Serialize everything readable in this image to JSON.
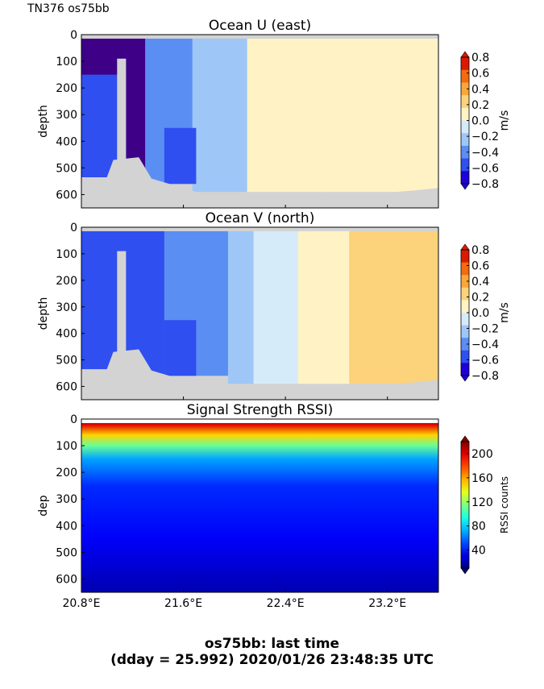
{
  "figure": {
    "corner_label": "TN376 os75bb",
    "footer_line1": "os75bb: last time",
    "footer_line2": "(dday = 25.992) 2020/01/26 23:48:35 UTC"
  },
  "colors": {
    "no_data": "#d3d3d3",
    "contour_levels": [
      "#1f00d6",
      "#2f4ff0",
      "#5b8ef2",
      "#9ec7f7",
      "#d6ebfa",
      "#fff3c6",
      "#fcd27a",
      "#f9a63b",
      "#f26b10",
      "#d91a00"
    ],
    "deep_blue": "#3e0086"
  },
  "chart_data": [
    {
      "type": "heatmap",
      "title": "Ocean U (east)",
      "xlabel": "",
      "ylabel": "depth",
      "xlim": [
        20.8,
        23.6
      ],
      "ylim": [
        650,
        0
      ],
      "yticks": [
        0,
        100,
        200,
        300,
        400,
        500,
        600
      ],
      "yticklabels": [
        "0",
        "100",
        "200",
        "300",
        "400",
        "500",
        "600"
      ],
      "xticks": [
        20.8,
        21.6,
        22.4,
        23.2
      ],
      "xticklabels": [],
      "colorbar": {
        "label": "m/s",
        "ticks": [
          0.8,
          0.6,
          0.4,
          0.2,
          0.0,
          -0.2,
          -0.4,
          -0.6,
          -0.8
        ],
        "ticklabels": [
          "0.8",
          "0.6",
          "0.4",
          "0.2",
          "0.0",
          "−0.2",
          "−0.4",
          "−0.6",
          "−0.8"
        ]
      },
      "vertical_bands": [
        {
          "x": [
            20.8,
            21.3
          ],
          "value": -0.9
        },
        {
          "x": [
            21.3,
            21.67
          ],
          "value": -0.45
        },
        {
          "x": [
            21.67,
            22.1
          ],
          "value": -0.25
        },
        {
          "x": [
            22.1,
            22.7
          ],
          "value": 0.05
        },
        {
          "x": [
            22.7,
            23.6
          ],
          "value": 0.1
        }
      ]
    },
    {
      "type": "heatmap",
      "title": "Ocean V (north)",
      "xlabel": "",
      "ylabel": "depth",
      "xlim": [
        20.8,
        23.6
      ],
      "ylim": [
        650,
        0
      ],
      "yticks": [
        0,
        100,
        200,
        300,
        400,
        500,
        600
      ],
      "yticklabels": [
        "0",
        "100",
        "200",
        "300",
        "400",
        "500",
        "600"
      ],
      "xticks": [
        20.8,
        21.6,
        22.4,
        23.2
      ],
      "xticklabels": [],
      "colorbar": {
        "label": "m/s",
        "ticks": [
          0.8,
          0.6,
          0.4,
          0.2,
          0.0,
          -0.2,
          -0.4,
          -0.6,
          -0.8
        ],
        "ticklabels": [
          "0.8",
          "0.6",
          "0.4",
          "0.2",
          "0.0",
          "−0.2",
          "−0.4",
          "−0.6",
          "−0.8"
        ]
      },
      "vertical_bands": [
        {
          "x": [
            20.8,
            21.45
          ],
          "value": -0.7
        },
        {
          "x": [
            21.45,
            21.95
          ],
          "value": -0.55
        },
        {
          "x": [
            21.95,
            22.15
          ],
          "value": -0.35
        },
        {
          "x": [
            22.15,
            22.5
          ],
          "value": -0.15
        },
        {
          "x": [
            22.5,
            22.9
          ],
          "value": 0.05
        },
        {
          "x": [
            22.9,
            23.6
          ],
          "value": 0.3
        }
      ]
    },
    {
      "type": "heatmap",
      "title": "Signal Strength RSSI)",
      "xlabel": "",
      "ylabel": "dep",
      "xlim": [
        20.8,
        23.6
      ],
      "ylim": [
        650,
        0
      ],
      "yticks": [
        0,
        100,
        200,
        300,
        400,
        500,
        600
      ],
      "yticklabels": [
        "0",
        "100",
        "200",
        "300",
        "400",
        "500",
        "600"
      ],
      "xticks": [
        20.8,
        21.6,
        22.4,
        23.2
      ],
      "xticklabels": [
        "20.8°E",
        "21.6°E",
        "22.4°E",
        "23.2°E"
      ],
      "colorbar": {
        "label": "RSSI counts",
        "ticks": [
          200,
          160,
          120,
          80,
          40
        ],
        "ticklabels": [
          "200",
          "160",
          "120",
          "80",
          "40"
        ],
        "range": [
          10,
          220
        ]
      },
      "depth_profile": [
        {
          "depth": 20,
          "value": 200
        },
        {
          "depth": 60,
          "value": 150
        },
        {
          "depth": 100,
          "value": 110
        },
        {
          "depth": 150,
          "value": 70
        },
        {
          "depth": 250,
          "value": 45
        },
        {
          "depth": 450,
          "value": 35
        },
        {
          "depth": 650,
          "value": 20
        }
      ]
    }
  ]
}
